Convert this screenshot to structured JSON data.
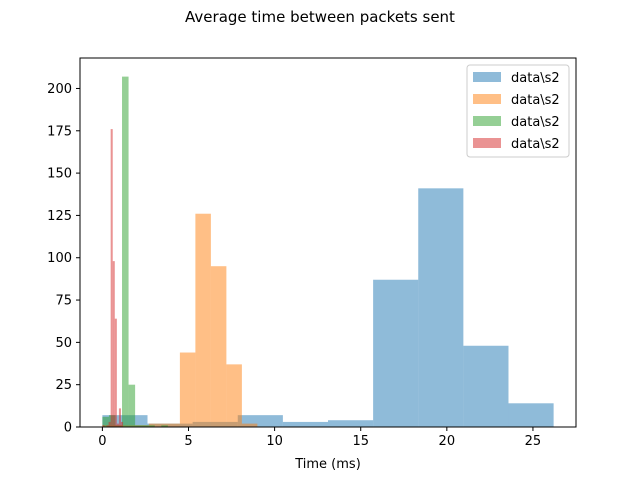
{
  "chart_data": {
    "type": "bar",
    "title": "Average time between packets sent",
    "xlabel": "Time (ms)",
    "ylabel": "",
    "xlim": [
      -1.3,
      27.5
    ],
    "ylim": [
      0,
      218
    ],
    "xticks": [
      0,
      5,
      10,
      15,
      20,
      25
    ],
    "yticks": [
      0,
      25,
      50,
      75,
      100,
      125,
      150,
      175,
      200
    ],
    "grid": false,
    "legend_position": "top-right",
    "series": [
      {
        "name": "data\\s2",
        "color": "#1f77b4",
        "opacity": 0.5,
        "bin_start": 0.0,
        "bin_width": 2.62,
        "values": [
          7,
          2,
          3,
          7,
          3,
          4,
          87,
          141,
          48,
          14
        ]
      },
      {
        "name": "data\\s2",
        "color": "#ff7f0e",
        "opacity": 0.5,
        "bin_start": 0.0,
        "bin_width": 0.9,
        "values": [
          1,
          1,
          1,
          2,
          2,
          44,
          126,
          95,
          37,
          2
        ]
      },
      {
        "name": "data\\s2",
        "color": "#2ca02c",
        "opacity": 0.5,
        "bin_start": 0.0,
        "bin_width": 0.38,
        "values": [
          6,
          7,
          1,
          207,
          25,
          1,
          1,
          1,
          0,
          1
        ]
      },
      {
        "name": "data\\s2",
        "color": "#d62728",
        "opacity": 0.5,
        "bin_start": 0.0,
        "bin_width": 0.12,
        "values": [
          1,
          0,
          1,
          3,
          176,
          98,
          64,
          2,
          11,
          3
        ]
      }
    ]
  }
}
